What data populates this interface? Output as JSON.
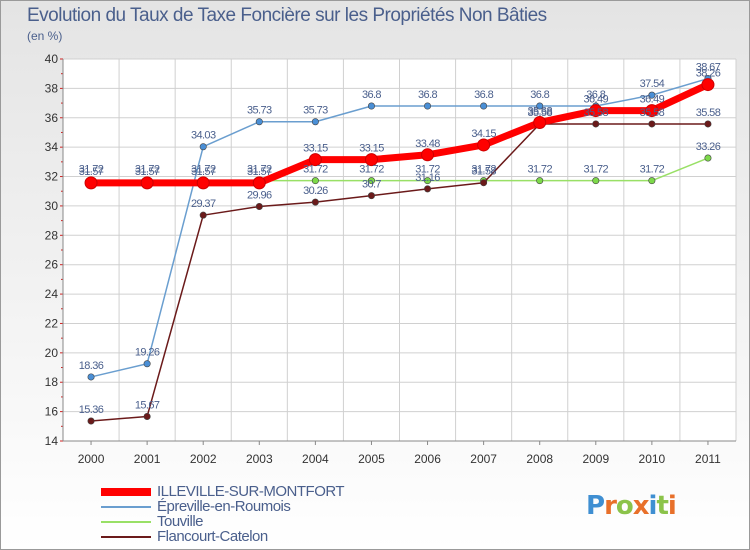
{
  "header": {
    "title": "Evolution du Taux de Taxe Foncière sur les Propriétés Non Bâties",
    "unit": "(en %)"
  },
  "logo": {
    "letters": [
      "P",
      "r",
      "o",
      "x",
      "i",
      "t",
      "i"
    ],
    "colors": [
      "#3f8fd2",
      "#e8702a",
      "#8bc34a",
      "#e8702a",
      "#3f8fd2",
      "#8bc34a",
      "#e8702a"
    ]
  },
  "chart_data": {
    "type": "line",
    "x": [
      "2000",
      "2001",
      "2002",
      "2003",
      "2004",
      "2005",
      "2006",
      "2007",
      "2008",
      "2009",
      "2010",
      "2011"
    ],
    "ylim": [
      14,
      40
    ],
    "yticks": [
      14,
      16,
      18,
      20,
      22,
      24,
      26,
      28,
      30,
      32,
      34,
      36,
      38,
      40
    ],
    "grid": true,
    "legend_position": "bottom-left",
    "series": [
      {
        "name": "ILLEVILLE-SUR-MONTFORT",
        "color": "#ff0000",
        "width": 7,
        "values": [
          31.57,
          31.57,
          31.57,
          31.57,
          33.15,
          33.15,
          33.48,
          34.15,
          35.68,
          36.49,
          36.49,
          38.26
        ],
        "labels": [
          "31.57",
          "31.57",
          "31.57",
          "31.57",
          "33.15",
          "33.15",
          "33.48",
          "34.15",
          "35.68",
          "36.49",
          "36.49",
          "38.26"
        ]
      },
      {
        "name": "Épreville-en-Roumois",
        "color": "#6a9ecf",
        "width": 1.5,
        "values": [
          18.36,
          19.26,
          34.03,
          35.73,
          35.73,
          36.8,
          36.8,
          36.8,
          36.8,
          36.8,
          37.54,
          38.67
        ],
        "labels": [
          "18.36",
          "19.26",
          "34.03",
          "35.73",
          "35.73",
          "36.8",
          "36.8",
          "36.8",
          "36.8",
          "36.8",
          "37.54",
          "38.67"
        ]
      },
      {
        "name": "Touville",
        "color": "#99e066",
        "width": 1.5,
        "values": [
          31.72,
          31.72,
          31.72,
          31.72,
          31.72,
          31.72,
          31.72,
          31.72,
          31.72,
          31.72,
          31.72,
          33.26
        ],
        "labels": [
          "31.72",
          "31.72",
          "31.72",
          "31.72",
          "31.72",
          "31.72",
          "31.72",
          "31.72",
          "31.72",
          "31.72",
          "31.72",
          "33.26"
        ]
      },
      {
        "name": "Flancourt-Catelon",
        "color": "#6b1a1a",
        "width": 1.5,
        "values": [
          15.36,
          15.67,
          29.37,
          29.96,
          30.26,
          30.7,
          31.16,
          31.58,
          35.58,
          35.58,
          35.58,
          35.58
        ],
        "labels": [
          "15.36",
          "15.67",
          "29.37",
          "29.96",
          "30.26",
          "30.7",
          "31.16",
          "31.58",
          "35.58",
          "35.58",
          "35.58",
          "35.58"
        ]
      }
    ]
  }
}
